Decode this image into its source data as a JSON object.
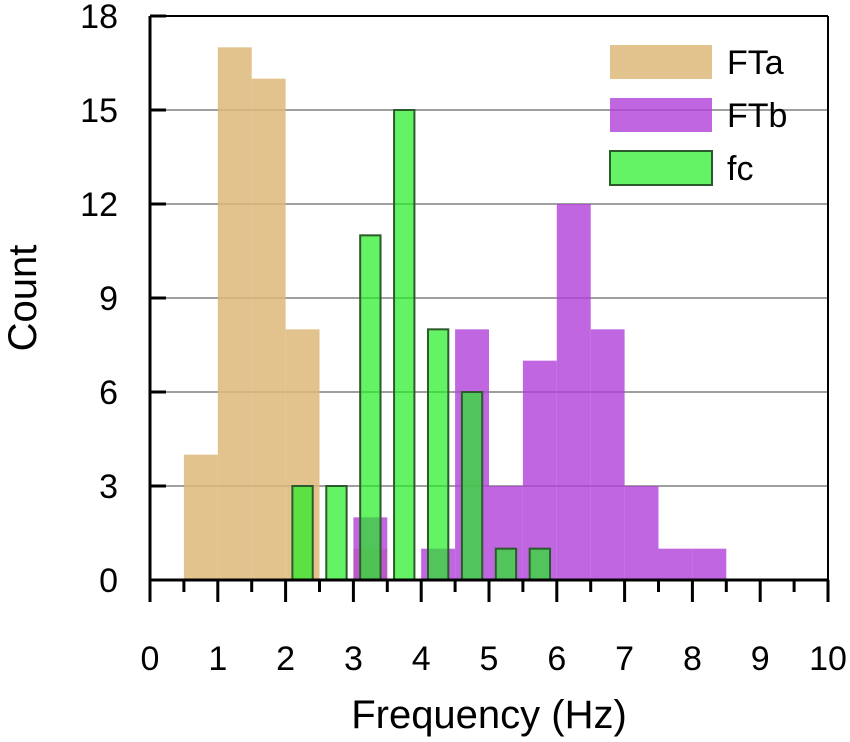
{
  "chart_data": {
    "type": "bar",
    "xlabel": "Frequency (Hz)",
    "ylabel": "Count",
    "xlim": [
      0,
      10
    ],
    "ylim": [
      0,
      18
    ],
    "x_ticks": [
      "0",
      "1",
      "2",
      "3",
      "4",
      "5",
      "6",
      "7",
      "8",
      "9",
      "10"
    ],
    "y_ticks": [
      "0",
      "3",
      "6",
      "9",
      "12",
      "15",
      "18"
    ],
    "grid": "horizontal",
    "legend_position": "top-right",
    "series": [
      {
        "name": "FTa",
        "color": "#ddb979",
        "opacity": 0.85,
        "edge": "none",
        "bin_width": 0.5,
        "x": [
          0.75,
          1.25,
          1.75,
          2.25,
          3.25
        ],
        "values": [
          4,
          17,
          16,
          8,
          1
        ]
      },
      {
        "name": "FTb",
        "color": "#b040d8",
        "opacity": 0.8,
        "edge": "none",
        "bin_width": 0.5,
        "x": [
          3.25,
          4.25,
          4.75,
          5.25,
          5.75,
          6.25,
          6.75,
          7.25,
          7.75,
          8.25
        ],
        "values": [
          2,
          1,
          8,
          3,
          7,
          12,
          8,
          3,
          1,
          1
        ]
      },
      {
        "name": "fc",
        "color": "#22ee22",
        "opacity": 0.7,
        "edge": "#2c5a2c",
        "bin_width": 0.3,
        "x": [
          2.25,
          2.75,
          3.25,
          3.75,
          4.25,
          4.75,
          5.25,
          5.75
        ],
        "values": [
          3,
          3,
          11,
          15,
          8,
          6,
          1,
          1
        ]
      }
    ]
  }
}
